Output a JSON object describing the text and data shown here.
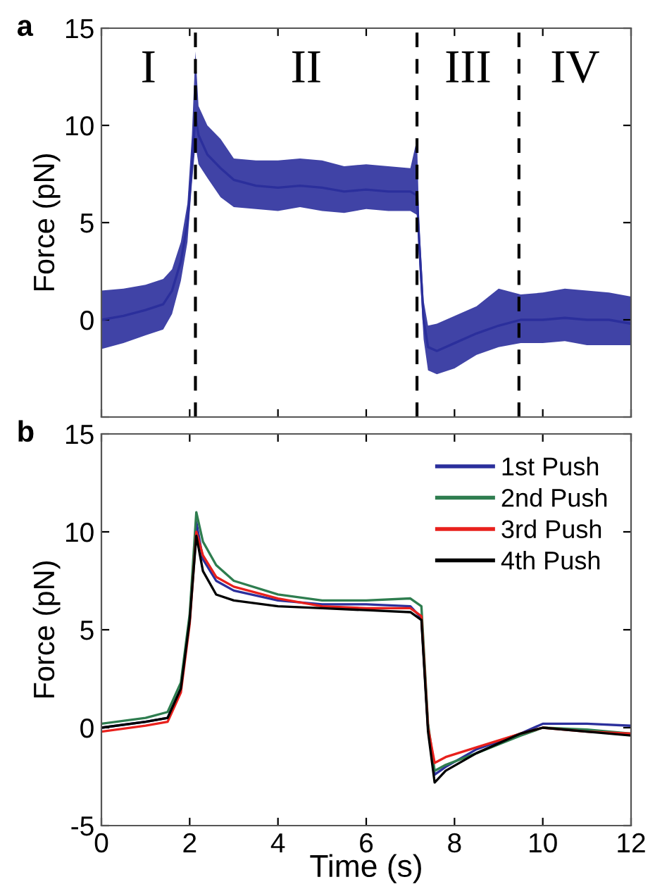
{
  "chart_data": [
    {
      "type": "line",
      "ylabel": "Force (pN)",
      "xlim": [
        0,
        12
      ],
      "xticks": [
        {
          "value": 0,
          "label": null
        },
        {
          "value": 2,
          "label": null
        },
        {
          "value": 4,
          "label": null
        },
        {
          "value": 6,
          "label": null
        },
        {
          "value": 8,
          "label": null
        },
        {
          "value": 10,
          "label": null
        },
        {
          "value": 12,
          "label": null
        }
      ],
      "ylim": [
        -5,
        15
      ],
      "yticks": [
        {
          "value": -5,
          "label": null
        },
        0,
        5,
        10,
        15
      ],
      "tick_labels": "y",
      "grid": false,
      "legend": false,
      "annotations": [
        "a",
        "I",
        "II",
        "III",
        "IV"
      ],
      "ref_lines": [
        {
          "axis": "x",
          "value": 2.13,
          "line_style": "dashed",
          "color": "#000000"
        },
        {
          "axis": "x",
          "value": 7.15,
          "line_style": "dashed",
          "color": "#000000"
        },
        {
          "axis": "x",
          "value": 9.46,
          "line_style": "dashed",
          "color": "#000000"
        }
      ],
      "series": [
        {
          "color": "#2b2f9c",
          "x": [
            0,
            0.5,
            1,
            1.4,
            1.6,
            1.8,
            1.95,
            2.05,
            2.13,
            2.2,
            2.4,
            2.7,
            3,
            3.5,
            4,
            4.5,
            5,
            5.5,
            6,
            6.5,
            7,
            7.15,
            7.2,
            7.3,
            7.4,
            7.6,
            8,
            8.5,
            9,
            9.5,
            10,
            10.5,
            11,
            11.5,
            12
          ],
          "values": [
            0,
            0.2,
            0.5,
            0.8,
            1.5,
            3,
            5,
            8,
            10.5,
            9.5,
            8.5,
            7.8,
            7.2,
            6.9,
            6.8,
            6.9,
            6.8,
            6.6,
            6.7,
            6.6,
            6.6,
            6.4,
            4,
            0,
            -1.4,
            -1.6,
            -1.2,
            -0.7,
            -0.3,
            0,
            0,
            0.1,
            0,
            0,
            -0.2
          ],
          "lower": [
            -1.5,
            -1.2,
            -0.8,
            -0.5,
            0.3,
            2,
            4,
            7,
            9,
            8,
            7.3,
            6.3,
            5.8,
            5.7,
            5.6,
            5.8,
            5.6,
            5.5,
            5.7,
            5.6,
            5.6,
            5.4,
            3,
            -1,
            -2.6,
            -2.8,
            -2.5,
            -1.8,
            -1.4,
            -1.2,
            -1.2,
            -1.1,
            -1.3,
            -1.3,
            -1.3
          ],
          "upper": [
            1.5,
            1.6,
            1.8,
            2.1,
            2.6,
            4,
            6,
            9.5,
            13.8,
            11,
            10,
            9.3,
            8.3,
            8.2,
            8.2,
            8.3,
            8.2,
            7.9,
            8.0,
            7.9,
            7.8,
            9.3,
            5,
            1,
            -0.3,
            -0.2,
            0.2,
            0.7,
            1.6,
            1.3,
            1.4,
            1.6,
            1.5,
            1.4,
            1.2
          ]
        }
      ]
    },
    {
      "type": "line",
      "xlabel": "Time (s)",
      "ylabel": "Force (pN)",
      "xlim": [
        0,
        12
      ],
      "xticks": [
        0,
        2,
        4,
        6,
        8,
        10,
        12
      ],
      "ylim": [
        -5,
        15
      ],
      "yticks": [
        -5,
        0,
        5,
        10,
        15
      ],
      "grid": false,
      "legend": "top right",
      "annotations": [
        "b"
      ],
      "series": [
        {
          "name": "1st Push",
          "color": "#2b2f9c",
          "x": [
            0,
            1,
            1.5,
            1.8,
            2,
            2.15,
            2.3,
            2.6,
            3,
            4,
            5,
            6,
            7,
            7.25,
            7.4,
            7.55,
            7.8,
            8.5,
            9.5,
            10,
            11,
            12
          ],
          "values": [
            0,
            0.3,
            0.5,
            2,
            5.5,
            10.5,
            8.6,
            7.5,
            7,
            6.5,
            6.3,
            6.3,
            6.2,
            5.6,
            0,
            -2.4,
            -2,
            -1.1,
            -0.3,
            0.2,
            0.2,
            0.1
          ]
        },
        {
          "name": "2nd Push",
          "color": "#2e7d4f",
          "x": [
            0,
            1,
            1.5,
            1.8,
            2,
            2.15,
            2.3,
            2.6,
            3,
            4,
            5,
            6,
            7,
            7.25,
            7.4,
            7.55,
            7.8,
            8.5,
            9.5,
            10,
            11,
            12
          ],
          "values": [
            0.2,
            0.5,
            0.8,
            2.3,
            5.8,
            11,
            9.5,
            8.3,
            7.5,
            6.8,
            6.5,
            6.5,
            6.6,
            6.2,
            0.2,
            -2.2,
            -1.9,
            -1.3,
            -0.4,
            0,
            -0.1,
            -0.3
          ]
        },
        {
          "name": "3rd Push",
          "color": "#e8201c",
          "x": [
            0,
            1,
            1.5,
            1.8,
            2,
            2.15,
            2.3,
            2.6,
            3,
            4,
            5,
            6,
            7,
            7.25,
            7.4,
            7.55,
            7.8,
            8.5,
            9.5,
            10,
            11,
            12
          ],
          "values": [
            -0.2,
            0.1,
            0.3,
            1.8,
            5.3,
            10,
            8.8,
            7.7,
            7.2,
            6.6,
            6.2,
            6.1,
            6.1,
            5.7,
            0,
            -1.8,
            -1.5,
            -1,
            -0.3,
            0,
            -0.2,
            -0.3
          ]
        },
        {
          "name": "4th Push",
          "color": "#000000",
          "x": [
            0,
            1,
            1.5,
            1.8,
            2,
            2.15,
            2.3,
            2.6,
            3,
            4,
            5,
            6,
            7,
            7.25,
            7.4,
            7.55,
            7.8,
            8.5,
            9.5,
            10,
            11,
            12
          ],
          "values": [
            0,
            0.3,
            0.5,
            2,
            5.5,
            9.8,
            8,
            6.8,
            6.5,
            6.2,
            6.1,
            6.0,
            5.9,
            5.5,
            -0.2,
            -2.8,
            -2.2,
            -1.3,
            -0.3,
            0,
            -0.2,
            -0.4
          ]
        }
      ]
    }
  ]
}
